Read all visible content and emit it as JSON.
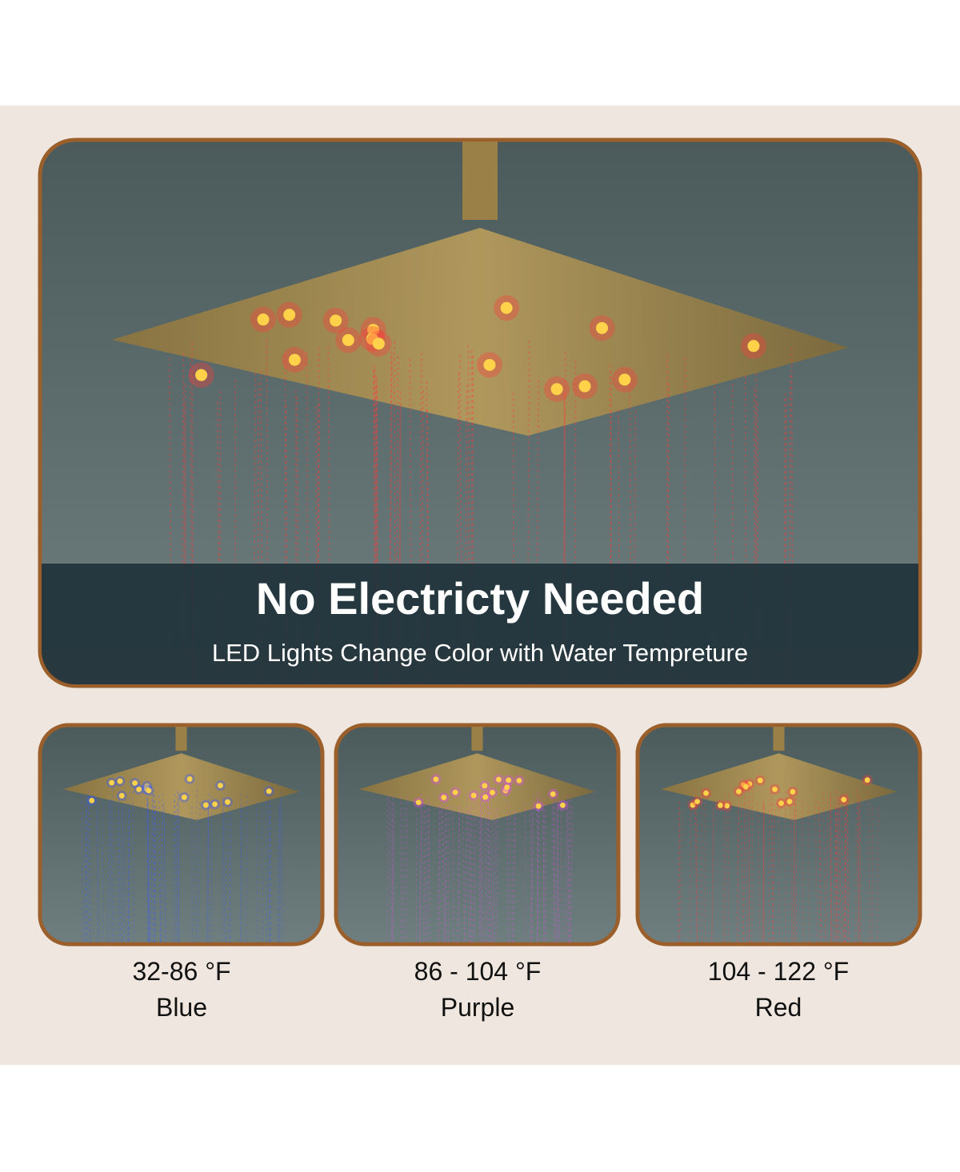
{
  "banner": {
    "title": "No Electricty Needed",
    "subtitle": "LED Lights Change Color with Water Tempreture"
  },
  "panels": [
    {
      "range": "32-86 °F",
      "color": "Blue"
    },
    {
      "range": "86 - 104 °F",
      "color": "Purple"
    },
    {
      "range": "104 - 122 °F",
      "color": "Red"
    }
  ]
}
